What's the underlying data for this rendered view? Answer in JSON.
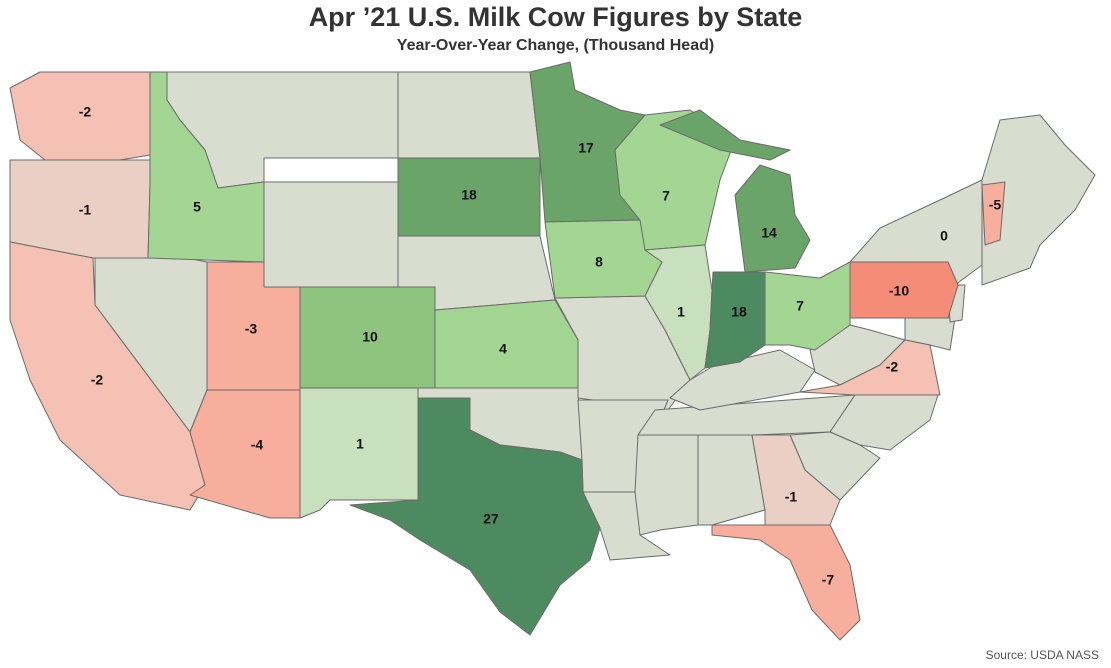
{
  "title": "Apr ’21 U.S. Milk Cow Figures by State",
  "subtitle": "Year-Over-Year Change, (Thousand Head)",
  "source": "Source: USDA NASS",
  "colors": {
    "neutral": "#d8ddd0",
    "green_light": "#c8e0bd",
    "green_mid": "#a3d693",
    "green": "#8fc47f",
    "green_dark": "#6aa468",
    "green_darkest": "#4e8a5f",
    "red_light": "#ead0c4",
    "red_mid": "#f4c1b4",
    "red": "#f8ae9c",
    "red_strong": "#f58c78"
  },
  "chart_data": {
    "type": "choropleth",
    "units": "Thousand Head",
    "values": [
      {
        "state": "WA",
        "value": -2
      },
      {
        "state": "OR",
        "value": -1
      },
      {
        "state": "CA",
        "value": -2
      },
      {
        "state": "ID",
        "value": 5
      },
      {
        "state": "UT",
        "value": -3
      },
      {
        "state": "AZ",
        "value": -4
      },
      {
        "state": "CO",
        "value": 10
      },
      {
        "state": "NM",
        "value": 1
      },
      {
        "state": "SD",
        "value": 18
      },
      {
        "state": "KS",
        "value": 4
      },
      {
        "state": "TX",
        "value": 27
      },
      {
        "state": "MN",
        "value": 17
      },
      {
        "state": "IA",
        "value": 8
      },
      {
        "state": "WI",
        "value": 7
      },
      {
        "state": "IL",
        "value": 1
      },
      {
        "state": "MI",
        "value": 14
      },
      {
        "state": "IN",
        "value": 18
      },
      {
        "state": "OH",
        "value": 7
      },
      {
        "state": "NY",
        "value": 0
      },
      {
        "state": "VT",
        "value": -5
      },
      {
        "state": "PA",
        "value": -10
      },
      {
        "state": "VA",
        "value": -2
      },
      {
        "state": "GA",
        "value": -1
      },
      {
        "state": "FL",
        "value": -7
      }
    ]
  }
}
